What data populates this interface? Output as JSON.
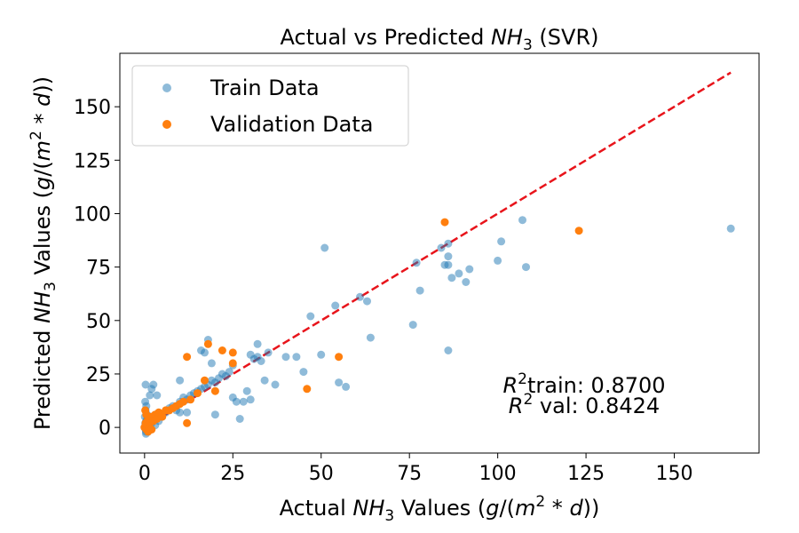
{
  "chart_data": {
    "type": "scatter",
    "title": {
      "prefix": "Actual vs Predicted ",
      "var": "NH",
      "sub": "3",
      "suffix": " (SVR)"
    },
    "xlabel": {
      "prefix": "Actual ",
      "var": "NH",
      "sub": "3",
      "mid": " Values (",
      "unit_a": "g",
      "unit_b": "/(",
      "unit_c": "m",
      "sup": "2",
      "unit_d": " * ",
      "unit_e": "d",
      "unit_f": "))"
    },
    "ylabel": {
      "prefix": "Predicted ",
      "var": "NH",
      "sub": "3",
      "mid": " Values (",
      "unit_a": "g",
      "unit_b": "/(",
      "unit_c": "m",
      "sup": "2",
      "unit_d": " * ",
      "unit_e": "d",
      "unit_f": "))"
    },
    "xlim": [
      -7,
      174
    ],
    "ylim": [
      -12,
      175
    ],
    "xticks": [
      0,
      25,
      50,
      75,
      100,
      125,
      150
    ],
    "yticks": [
      0,
      25,
      50,
      75,
      100,
      125,
      150
    ],
    "legend_position": "upper-left",
    "series": [
      {
        "name": "Train Data",
        "color": "#1f77b4",
        "opacity": 0.5,
        "points": [
          [
            0,
            0
          ],
          [
            0.2,
            2
          ],
          [
            0.3,
            -1
          ],
          [
            0.5,
            3
          ],
          [
            0.4,
            -2
          ],
          [
            0.6,
            1
          ],
          [
            0.8,
            4
          ],
          [
            1,
            2
          ],
          [
            0.1,
            5
          ],
          [
            0.3,
            8
          ],
          [
            0.5,
            10
          ],
          [
            0.2,
            12
          ],
          [
            0.7,
            6
          ],
          [
            1.2,
            3
          ],
          [
            1.5,
            5
          ],
          [
            2,
            2
          ],
          [
            2.5,
            4
          ],
          [
            3,
            1
          ],
          [
            3.5,
            6
          ],
          [
            4,
            3
          ],
          [
            0.3,
            20
          ],
          [
            1.5,
            15
          ],
          [
            2,
            18
          ],
          [
            2.5,
            20
          ],
          [
            3.5,
            15
          ],
          [
            0.4,
            -3
          ],
          [
            1,
            -2
          ],
          [
            5,
            5
          ],
          [
            6,
            7
          ],
          [
            7,
            9
          ],
          [
            8,
            10
          ],
          [
            9,
            8
          ],
          [
            10,
            12
          ],
          [
            11,
            14
          ],
          [
            12,
            13
          ],
          [
            13,
            15
          ],
          [
            14,
            16
          ],
          [
            15,
            17
          ],
          [
            16,
            18
          ],
          [
            17,
            19
          ],
          [
            18,
            20
          ],
          [
            19,
            22
          ],
          [
            20,
            21
          ],
          [
            10,
            22
          ],
          [
            12,
            7
          ],
          [
            10,
            7
          ],
          [
            16,
            36
          ],
          [
            17,
            35
          ],
          [
            18,
            41
          ],
          [
            19,
            30
          ],
          [
            20,
            6
          ],
          [
            21,
            23
          ],
          [
            22,
            25
          ],
          [
            23,
            24
          ],
          [
            24,
            26
          ],
          [
            25,
            14
          ],
          [
            25,
            29
          ],
          [
            26,
            12
          ],
          [
            27,
            4
          ],
          [
            28,
            12
          ],
          [
            29,
            17
          ],
          [
            30,
            13
          ],
          [
            30,
            34
          ],
          [
            31,
            32
          ],
          [
            32,
            33
          ],
          [
            32,
            39
          ],
          [
            33,
            31
          ],
          [
            34,
            22
          ],
          [
            35,
            35
          ],
          [
            37,
            20
          ],
          [
            40,
            33
          ],
          [
            43,
            33
          ],
          [
            45,
            26
          ],
          [
            47,
            52
          ],
          [
            50,
            34
          ],
          [
            51,
            84
          ],
          [
            54,
            57
          ],
          [
            55,
            21
          ],
          [
            57,
            19
          ],
          [
            61,
            61
          ],
          [
            63,
            59
          ],
          [
            64,
            42
          ],
          [
            76,
            48
          ],
          [
            77,
            77
          ],
          [
            78,
            64
          ],
          [
            84,
            84
          ],
          [
            85,
            76
          ],
          [
            86,
            86
          ],
          [
            86,
            80
          ],
          [
            86,
            76
          ],
          [
            86,
            36
          ],
          [
            87,
            70
          ],
          [
            89,
            72
          ],
          [
            91,
            68
          ],
          [
            92,
            74
          ],
          [
            100,
            78
          ],
          [
            101,
            87
          ],
          [
            107,
            97
          ],
          [
            108,
            75
          ],
          [
            166,
            93
          ]
        ]
      },
      {
        "name": "Validation Data",
        "color": "#ff7f0e",
        "opacity": 1,
        "points": [
          [
            0,
            0
          ],
          [
            0.3,
            2
          ],
          [
            0.5,
            -1
          ],
          [
            0.8,
            3
          ],
          [
            1,
            1
          ],
          [
            1.2,
            4
          ],
          [
            1.5,
            2
          ],
          [
            2,
            5
          ],
          [
            2.5,
            3
          ],
          [
            3,
            6
          ],
          [
            3.5,
            4
          ],
          [
            4,
            7
          ],
          [
            0.2,
            8
          ],
          [
            0.5,
            6
          ],
          [
            1,
            -2
          ],
          [
            2,
            -1
          ],
          [
            5,
            5
          ],
          [
            6,
            8
          ],
          [
            7,
            8
          ],
          [
            8,
            9
          ],
          [
            9,
            10
          ],
          [
            10,
            11
          ],
          [
            11,
            12
          ],
          [
            12,
            33
          ],
          [
            12,
            2
          ],
          [
            13,
            13
          ],
          [
            15,
            16
          ],
          [
            17,
            22
          ],
          [
            18,
            39
          ],
          [
            20,
            17
          ],
          [
            22,
            36
          ],
          [
            25,
            30
          ],
          [
            25,
            35
          ],
          [
            46,
            18
          ],
          [
            55,
            33
          ],
          [
            85,
            96
          ],
          [
            123,
            92
          ]
        ]
      }
    ],
    "reference_line": {
      "style": "dashed",
      "color": "#e8141b",
      "from": [
        0,
        0
      ],
      "to": [
        166,
        166
      ]
    },
    "annotations": [
      {
        "sym": "R",
        "sup": "2",
        "text": "train: 0.8700"
      },
      {
        "sym": "R",
        "sup": "2",
        "text": " val: 0.8424"
      }
    ]
  }
}
